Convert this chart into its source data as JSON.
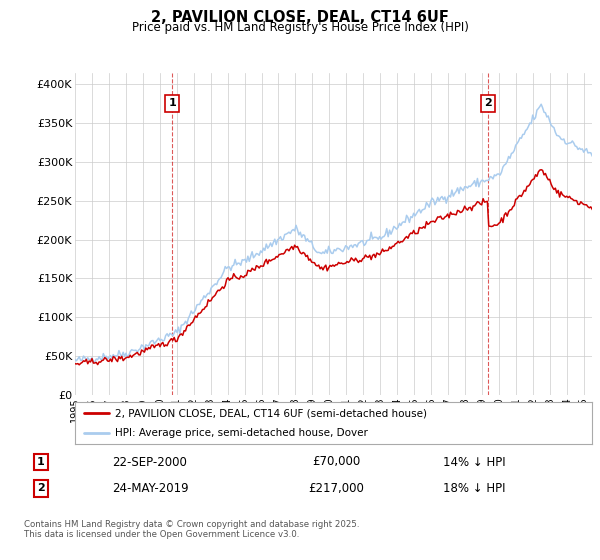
{
  "title": "2, PAVILION CLOSE, DEAL, CT14 6UF",
  "subtitle": "Price paid vs. HM Land Registry's House Price Index (HPI)",
  "ylabel_ticks": [
    "£0",
    "£50K",
    "£100K",
    "£150K",
    "£200K",
    "£250K",
    "£300K",
    "£350K",
    "£400K"
  ],
  "ytick_values": [
    0,
    50000,
    100000,
    150000,
    200000,
    250000,
    300000,
    350000,
    400000
  ],
  "ylim": [
    0,
    415000
  ],
  "xlim_start": 1995.0,
  "xlim_end": 2025.5,
  "sale1_yr": 2000.73,
  "sale1_price": 70000,
  "sale2_yr": 2019.38,
  "sale2_price": 217000,
  "sale1_date": "22-SEP-2000",
  "sale1_price_str": "£70,000",
  "sale1_hpi": "14% ↓ HPI",
  "sale2_date": "24-MAY-2019",
  "sale2_price_str": "£217,000",
  "sale2_hpi": "18% ↓ HPI",
  "legend_line1": "2, PAVILION CLOSE, DEAL, CT14 6UF (semi-detached house)",
  "legend_line2": "HPI: Average price, semi-detached house, Dover",
  "footnote": "Contains HM Land Registry data © Crown copyright and database right 2025.\nThis data is licensed under the Open Government Licence v3.0.",
  "line_color_property": "#cc0000",
  "line_color_hpi": "#aaccee",
  "background_color": "#ffffff",
  "grid_color": "#cccccc"
}
